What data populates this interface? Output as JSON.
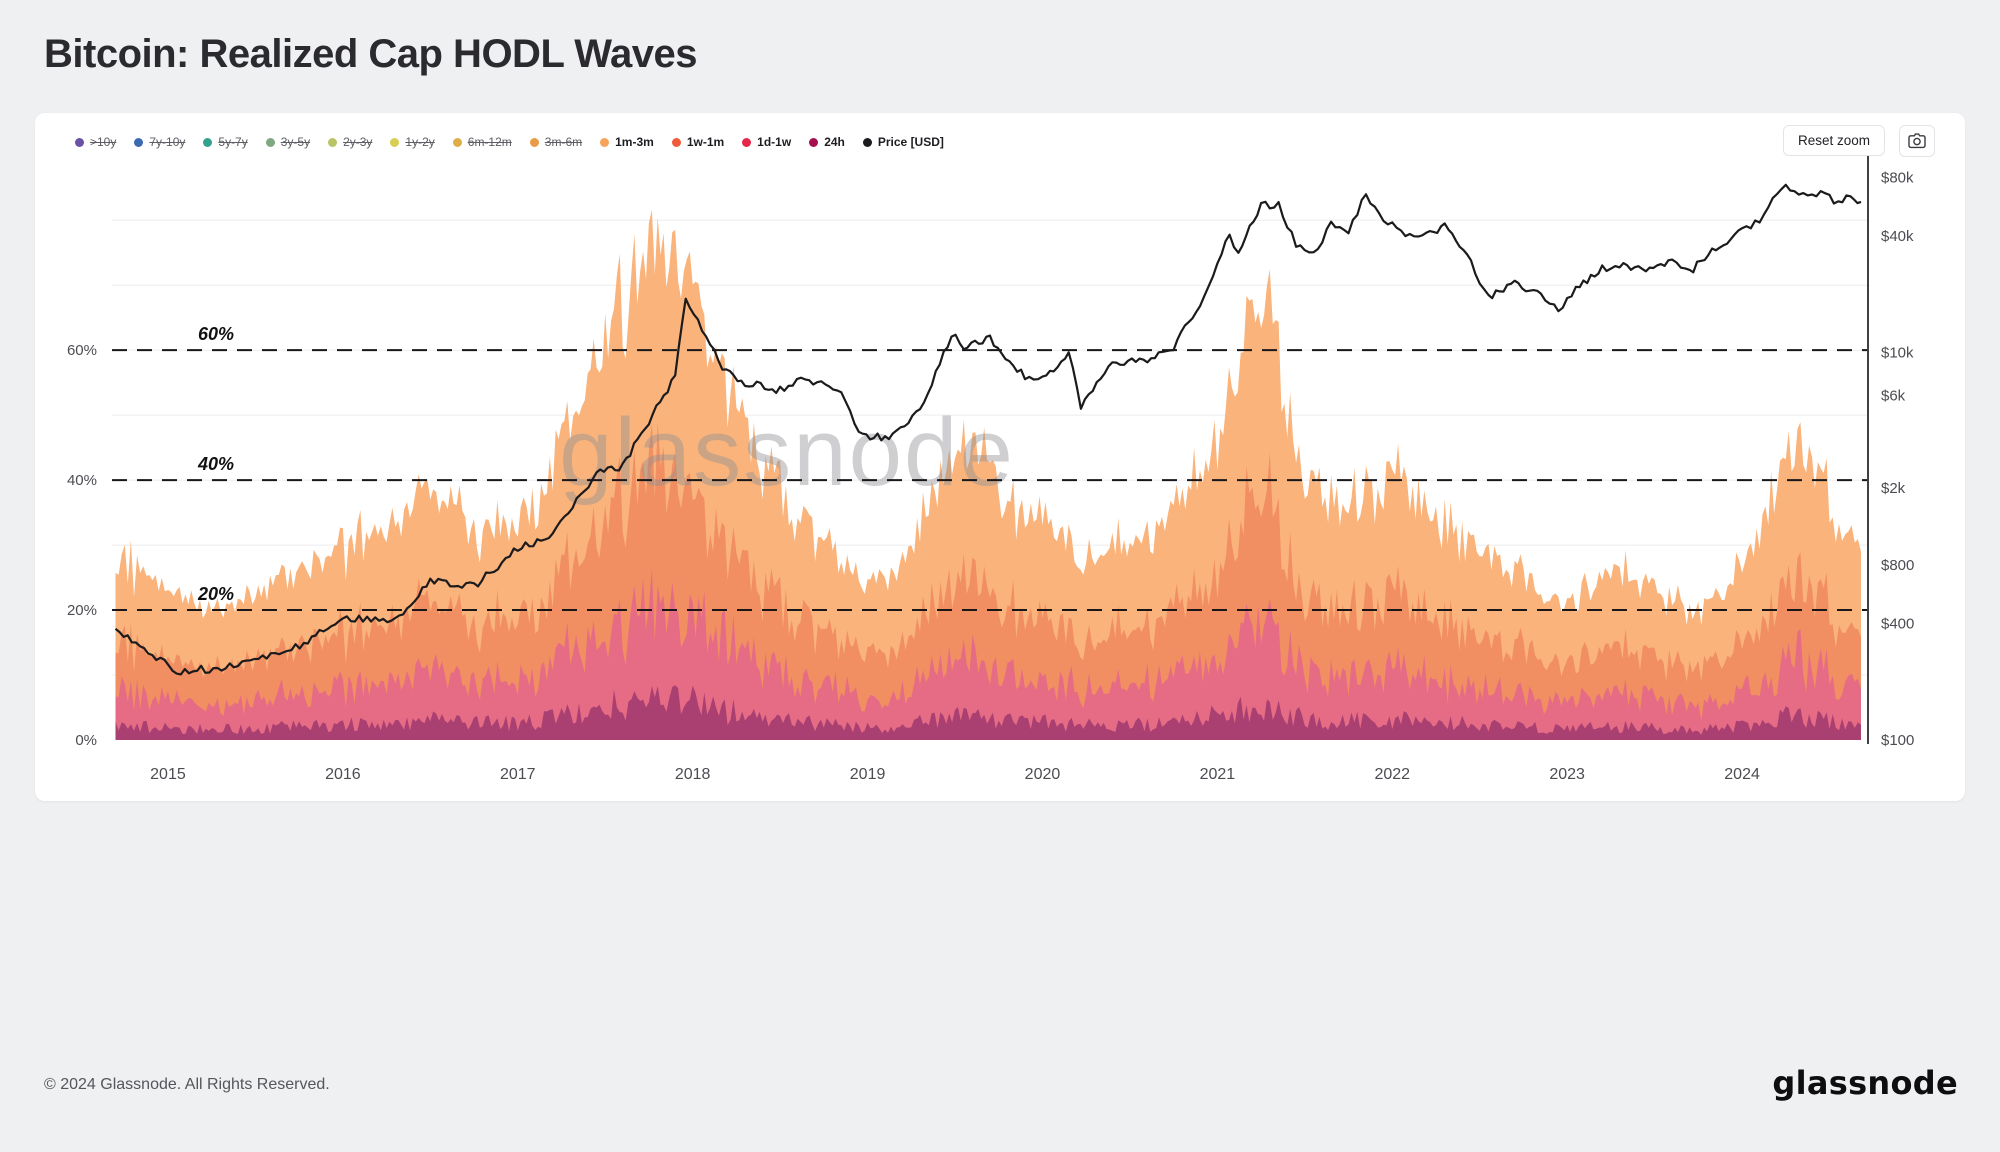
{
  "page": {
    "title": "Bitcoin: Realized Cap HODL Waves",
    "watermark": "glassnode",
    "footer": "© 2024 Glassnode. All Rights Reserved.",
    "brand_logo": "glassnode"
  },
  "toolbar": {
    "reset_zoom": "Reset zoom",
    "camera_icon": "camera-icon"
  },
  "legend": {
    "items": [
      {
        "label": ">10y",
        "color": "#6a51a3",
        "active": false
      },
      {
        "label": "7y-10y",
        "color": "#3c6ab0",
        "active": false
      },
      {
        "label": "5y-7y",
        "color": "#35a08c",
        "active": false
      },
      {
        "label": "3y-5y",
        "color": "#7fa882",
        "active": false
      },
      {
        "label": "2y-3y",
        "color": "#b9c466",
        "active": false
      },
      {
        "label": "1y-2y",
        "color": "#d8ce52",
        "active": false
      },
      {
        "label": "6m-12m",
        "color": "#dfae49",
        "active": false
      },
      {
        "label": "3m-6m",
        "color": "#eb9b47",
        "active": false
      },
      {
        "label": "1m-3m",
        "color": "#f9a25a",
        "active": true
      },
      {
        "label": "1w-1m",
        "color": "#f05b3c",
        "active": true
      },
      {
        "label": "1d-1w",
        "color": "#e6274c",
        "active": true
      },
      {
        "label": "24h",
        "color": "#a50f4f",
        "active": true
      },
      {
        "label": "Price [USD]",
        "color": "#1b1b1e",
        "active": true
      }
    ]
  },
  "chart_data": {
    "type": "area",
    "stacked": true,
    "title": "Bitcoin: Realized Cap HODL Waves",
    "x_unit": "year",
    "x_domain": [
      2014.68,
      2024.72
    ],
    "x_ticks": [
      2015,
      2016,
      2017,
      2018,
      2019,
      2020,
      2021,
      2022,
      2023,
      2024
    ],
    "left_axis": {
      "unit": "%",
      "ticks": [
        0,
        20,
        40,
        60
      ],
      "labels": [
        "0%",
        "20%",
        "40%",
        "60%"
      ],
      "max": 88.5
    },
    "right_axis": {
      "scale": "log",
      "min": 100,
      "max": 93000,
      "ticks": [
        100,
        400,
        800,
        2000,
        6000,
        10000,
        40000,
        80000
      ],
      "labels": [
        "$100",
        "$400",
        "$800",
        "$2k",
        "$6k",
        "$10k",
        "$40k",
        "$80k"
      ]
    },
    "thresholds": [
      {
        "value": 20,
        "label": "20%"
      },
      {
        "value": 40,
        "label": "40%"
      },
      {
        "value": 60,
        "label": "60%"
      }
    ],
    "x": [
      2014.7,
      2015.0,
      2015.25,
      2015.5,
      2015.75,
      2016.0,
      2016.25,
      2016.5,
      2016.75,
      2017.0,
      2017.25,
      2017.5,
      2017.75,
      2017.95,
      2018.1,
      2018.25,
      2018.5,
      2018.75,
      2019.0,
      2019.25,
      2019.5,
      2019.65,
      2019.85,
      2020.0,
      2020.25,
      2020.5,
      2020.75,
      2021.0,
      2021.15,
      2021.3,
      2021.5,
      2021.75,
      2022.0,
      2022.25,
      2022.5,
      2022.75,
      2023.0,
      2023.25,
      2023.5,
      2023.75,
      2024.0,
      2024.2,
      2024.35,
      2024.5,
      2024.68
    ],
    "series": [
      {
        "name": "24h",
        "color": "#aa3f72",
        "unit": "% of realized cap",
        "values": [
          2.2,
          1.9,
          1.6,
          1.8,
          2.1,
          2.4,
          2.6,
          3,
          2.6,
          2.6,
          3.6,
          5,
          5.9,
          6.1,
          5,
          4.2,
          3,
          2.4,
          1.9,
          2.4,
          3.5,
          3.7,
          2.8,
          2.7,
          2.2,
          2.4,
          2.7,
          3.7,
          5,
          5.3,
          3.2,
          2.9,
          3.3,
          2.7,
          2.4,
          2,
          1.6,
          2.1,
          1.8,
          1.5,
          2.1,
          3.4,
          3.7,
          2.9,
          2.3
        ]
      },
      {
        "name": "1d-1w",
        "color": "#e56c84",
        "unit": "% of realized cap",
        "values": [
          5.3,
          4.6,
          3.8,
          4.2,
          4.9,
          5.7,
          6.3,
          7.2,
          6.3,
          6.1,
          8.6,
          11.8,
          14.1,
          14.4,
          11.8,
          9.9,
          7.2,
          5.7,
          4.6,
          5.7,
          8.4,
          8.7,
          6.7,
          6.5,
          5.3,
          5.7,
          6.5,
          8.7,
          11.8,
          12.5,
          7.6,
          6.8,
          7.8,
          6.5,
          5.7,
          4.8,
          3.8,
          4.9,
          4.4,
          3.6,
          4.9,
          8,
          8.7,
          6.8,
          5.5
        ]
      },
      {
        "name": "1w-1m",
        "color": "#f18e62",
        "unit": "% of realized cap",
        "values": [
          7.8,
          6.7,
          5.6,
          6.2,
          7.3,
          8.4,
          9.2,
          10.6,
          9.2,
          9,
          12.6,
          17.4,
          20.7,
          21.3,
          17.4,
          14.6,
          10.6,
          8.4,
          6.7,
          8.4,
          12.3,
          12.9,
          9.8,
          9.5,
          7.8,
          8.4,
          9.5,
          12.9,
          17.4,
          18.5,
          11.2,
          10.1,
          11.5,
          9.5,
          8.4,
          7,
          5.6,
          7.3,
          6.4,
          5.3,
          7.3,
          11.8,
          12.9,
          10.1,
          8.1
        ]
      },
      {
        "name": "1m-3m",
        "color": "#f9b37b",
        "unit": "% of realized cap",
        "values": [
          12.6,
          10.8,
          9,
          9.9,
          11.7,
          13.5,
          14.9,
          17.1,
          14.9,
          14.4,
          20.3,
          27.9,
          33.3,
          34.2,
          27.9,
          23.4,
          17.1,
          13.5,
          10.8,
          13.5,
          19.8,
          20.7,
          15.8,
          15.3,
          12.6,
          13.5,
          15.3,
          20.7,
          27.9,
          29.7,
          18,
          16.2,
          18.5,
          15.3,
          13.5,
          11.3,
          9,
          11.7,
          10.4,
          8.6,
          11.7,
          18.9,
          20.7,
          16.2,
          13.1
        ]
      }
    ],
    "price_series": {
      "name": "Price [USD]",
      "color": "#1b1b1e",
      "axis": "right-log",
      "x": [
        2014.7,
        2015.05,
        2015.4,
        2015.8,
        2016.0,
        2016.3,
        2016.5,
        2016.75,
        2017.0,
        2017.2,
        2017.45,
        2017.6,
        2017.75,
        2017.9,
        2017.96,
        2018.1,
        2018.17,
        2018.3,
        2018.5,
        2018.62,
        2018.85,
        2018.95,
        2019.1,
        2019.3,
        2019.48,
        2019.55,
        2019.7,
        2019.9,
        2020.0,
        2020.15,
        2020.22,
        2020.4,
        2020.6,
        2020.75,
        2020.9,
        2021.0,
        2021.07,
        2021.12,
        2021.25,
        2021.35,
        2021.45,
        2021.55,
        2021.65,
        2021.75,
        2021.85,
        2021.95,
        2022.05,
        2022.15,
        2022.3,
        2022.45,
        2022.55,
        2022.7,
        2022.85,
        2022.95,
        2023.05,
        2023.2,
        2023.3,
        2023.45,
        2023.6,
        2023.7,
        2023.85,
        2024.0,
        2024.1,
        2024.2,
        2024.25,
        2024.35,
        2024.45,
        2024.55,
        2024.62,
        2024.68
      ],
      "values": [
        380,
        225,
        240,
        320,
        430,
        420,
        670,
        620,
        970,
        1150,
        2400,
        2600,
        4400,
        7500,
        19000,
        11000,
        8200,
        7000,
        6400,
        7400,
        6400,
        3800,
        3600,
        5000,
        12500,
        10800,
        11800,
        7400,
        7200,
        10200,
        5200,
        8800,
        9200,
        10600,
        18000,
        29000,
        40000,
        33000,
        57000,
        59000,
        36000,
        31500,
        46000,
        43000,
        66000,
        47000,
        43000,
        38000,
        45000,
        29000,
        19000,
        23000,
        19500,
        16500,
        21000,
        27000,
        28000,
        26500,
        30000,
        26000,
        34500,
        42000,
        48000,
        68000,
        73000,
        64000,
        67000,
        58000,
        65000,
        60000
      ]
    }
  }
}
